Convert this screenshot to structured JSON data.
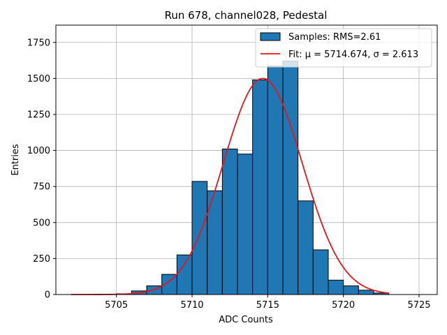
{
  "chart_data": {
    "type": "bar",
    "title": "Run 678, channel028, Pedestal",
    "xlabel": "ADC Counts",
    "ylabel": "Entries",
    "xlim": [
      5701,
      5726.2
    ],
    "ylim": [
      0,
      1870
    ],
    "xticks": [
      5705,
      5710,
      5715,
      5720,
      5725
    ],
    "yticks": [
      0,
      250,
      500,
      750,
      1000,
      1250,
      1500,
      1750
    ],
    "grid": true,
    "legend_position": "top-right",
    "colors": {
      "bar_fill": "#1f77b4",
      "bar_edge": "#000000",
      "fit_line": "#e8141b",
      "grid": "#b0b0b0"
    },
    "bins": {
      "edges": [
        5702,
        5703,
        5704,
        5705,
        5706,
        5707,
        5708,
        5709,
        5710,
        5711,
        5712,
        5713,
        5714,
        5715,
        5716,
        5717,
        5718,
        5719,
        5720,
        5721,
        5722,
        5723
      ],
      "values": [
        0,
        0,
        0,
        5,
        25,
        60,
        140,
        275,
        785,
        720,
        1010,
        975,
        1490,
        1585,
        1620,
        650,
        310,
        100,
        60,
        30,
        10
      ]
    },
    "series": [
      {
        "name": "Samples: RMS=2.61",
        "kind": "histogram"
      },
      {
        "name": "Fit: μ = 5714.674, σ = 2.613",
        "kind": "line",
        "mu": 5714.674,
        "sigma": 2.613,
        "amplitude": 1500,
        "x_range": [
          5702,
          5723
        ]
      }
    ]
  }
}
